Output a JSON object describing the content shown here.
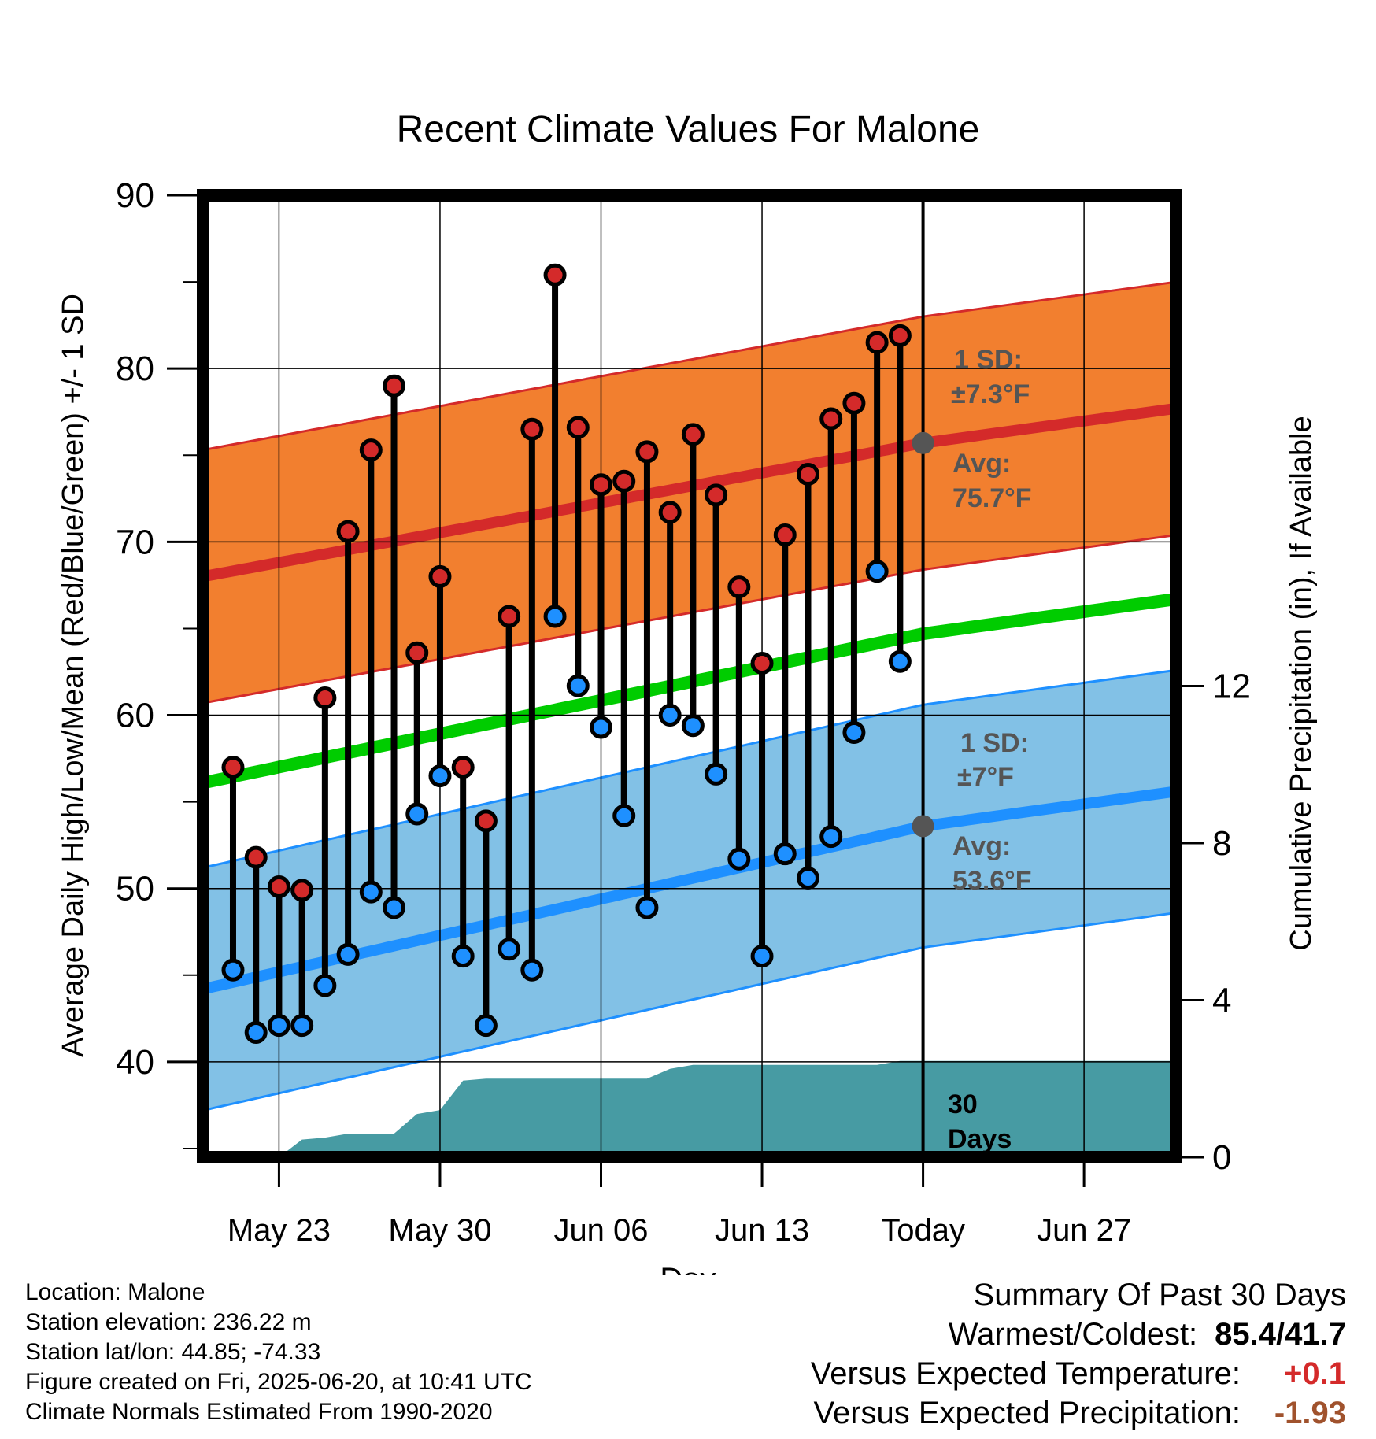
{
  "title": "Recent Climate Values For Malone",
  "x_label": "Day",
  "y_label_left": "Average Daily High/Low/Mean (Red/Blue/Green) +/- 1 SD",
  "y_label_right": "Cumulative Precipitation (in), If Available",
  "colors": {
    "high": "#d42a2a",
    "low": "#1e90ff",
    "mean": "#00cc00",
    "high_band": "#f27f2f",
    "low_band": "#82c1e6",
    "precip": "#479ba3",
    "annotation": "#555555"
  },
  "annotations": {
    "high_sd_line1": "1 SD:",
    "high_sd_line2": "±7.3°F",
    "high_avg_line1": "Avg:",
    "high_avg_line2": "75.7°F",
    "low_sd_line1": "1 SD:",
    "low_sd_line2": "±7°F",
    "low_avg_line1": "Avg:",
    "low_avg_line2": "53.6°F",
    "period_line1": "30",
    "period_line2": "Days"
  },
  "footer": {
    "location": "Location: Malone",
    "elevation": "Station elevation: 236.22 m",
    "latlon": "Station lat/lon: 44.85; -74.33",
    "created": "Figure created on Fri, 2025-06-20, at 10:41 UTC",
    "normals": "Climate Normals Estimated From 1990-2020"
  },
  "summary": {
    "heading": "Summary Of Past 30 Days",
    "warm_cold_label": "Warmest/Coldest:",
    "warm_cold_value": "85.4/41.7",
    "temp_label": "Versus Expected Temperature:",
    "temp_value": "+0.1",
    "temp_color": "#d42a2a",
    "precip_label": "Versus Expected Precipitation:",
    "precip_value": "-1.93",
    "precip_color": "#a0522d"
  },
  "chart_data": {
    "type": "line",
    "x_tick_labels": [
      "May 23",
      "May 30",
      "Jun 06",
      "Jun 13",
      "Today",
      "Jun 27"
    ],
    "x_tick_dates": [
      "2025-05-23",
      "2025-05-30",
      "2025-06-06",
      "2025-06-13",
      "2025-06-20",
      "2025-06-27"
    ],
    "x_range": [
      "2025-05-19.7",
      "2025-07-01"
    ],
    "today": "2025-06-20",
    "y_left_range": [
      34.5,
      90
    ],
    "y_left_ticks": [
      40,
      50,
      60,
      70,
      80,
      90
    ],
    "y_right_range": [
      0,
      24.5
    ],
    "y_right_ticks": [
      0,
      4,
      8,
      12
    ],
    "grid": true,
    "daily_temps": [
      {
        "date": "2025-05-21",
        "high": 57.0,
        "low": 45.3
      },
      {
        "date": "2025-05-22",
        "high": 51.8,
        "low": 41.7
      },
      {
        "date": "2025-05-23",
        "high": 50.1,
        "low": 42.1
      },
      {
        "date": "2025-05-24",
        "high": 49.9,
        "low": 42.1
      },
      {
        "date": "2025-05-25",
        "high": 61.0,
        "low": 44.4
      },
      {
        "date": "2025-05-26",
        "high": 70.6,
        "low": 46.2
      },
      {
        "date": "2025-05-27",
        "high": 75.3,
        "low": 49.8
      },
      {
        "date": "2025-05-28",
        "high": 79.0,
        "low": 48.9
      },
      {
        "date": "2025-05-29",
        "high": 63.6,
        "low": 54.3
      },
      {
        "date": "2025-05-30",
        "high": 68.0,
        "low": 56.5
      },
      {
        "date": "2025-05-31",
        "high": 57.0,
        "low": 46.1
      },
      {
        "date": "2025-06-01",
        "high": 53.9,
        "low": 42.1
      },
      {
        "date": "2025-06-02",
        "high": 65.7,
        "low": 46.5
      },
      {
        "date": "2025-06-03",
        "high": 76.5,
        "low": 45.3
      },
      {
        "date": "2025-06-04",
        "high": 85.4,
        "low": 65.7
      },
      {
        "date": "2025-06-05",
        "high": 76.6,
        "low": 61.7
      },
      {
        "date": "2025-06-06",
        "high": 73.3,
        "low": 59.3
      },
      {
        "date": "2025-06-07",
        "high": 73.5,
        "low": 54.2
      },
      {
        "date": "2025-06-08",
        "high": 75.2,
        "low": 48.9
      },
      {
        "date": "2025-06-09",
        "high": 71.7,
        "low": 60.0
      },
      {
        "date": "2025-06-10",
        "high": 76.2,
        "low": 59.4
      },
      {
        "date": "2025-06-11",
        "high": 72.7,
        "low": 56.6
      },
      {
        "date": "2025-06-12",
        "high": 67.4,
        "low": 51.7
      },
      {
        "date": "2025-06-13",
        "high": 63.0,
        "low": 46.1
      },
      {
        "date": "2025-06-14",
        "high": 70.4,
        "low": 52.0
      },
      {
        "date": "2025-06-15",
        "high": 73.9,
        "low": 50.6
      },
      {
        "date": "2025-06-16",
        "high": 77.1,
        "low": 53.0
      },
      {
        "date": "2025-06-17",
        "high": 78.0,
        "low": 59.0
      },
      {
        "date": "2025-06-18",
        "high": 81.5,
        "low": 68.3
      },
      {
        "date": "2025-06-19",
        "high": 81.9,
        "low": 63.1
      }
    ],
    "normals": {
      "dates": [
        "2025-05-19.7",
        "2025-06-20",
        "2025-07-01"
      ],
      "avg_high": [
        68.0,
        75.7,
        77.7
      ],
      "avg_low": [
        44.2,
        53.6,
        55.6
      ],
      "avg_mean": [
        56.1,
        64.7,
        66.7
      ],
      "high_sd": 7.3,
      "low_sd": 7.0
    },
    "cumulative_precip": [
      {
        "date": "2025-05-23",
        "value": 0.0
      },
      {
        "date": "2025-05-24",
        "value": 0.45
      },
      {
        "date": "2025-05-25",
        "value": 0.5
      },
      {
        "date": "2025-05-26",
        "value": 0.6
      },
      {
        "date": "2025-05-27",
        "value": 0.6
      },
      {
        "date": "2025-05-28",
        "value": 0.6
      },
      {
        "date": "2025-05-29",
        "value": 1.1
      },
      {
        "date": "2025-05-30",
        "value": 1.2
      },
      {
        "date": "2025-05-31",
        "value": 1.95
      },
      {
        "date": "2025-06-01",
        "value": 2.0
      },
      {
        "date": "2025-06-08",
        "value": 2.0
      },
      {
        "date": "2025-06-09",
        "value": 2.25
      },
      {
        "date": "2025-06-10",
        "value": 2.35
      },
      {
        "date": "2025-06-18",
        "value": 2.35
      },
      {
        "date": "2025-06-19",
        "value": 2.45
      },
      {
        "date": "2025-07-01",
        "value": 2.45
      }
    ]
  }
}
